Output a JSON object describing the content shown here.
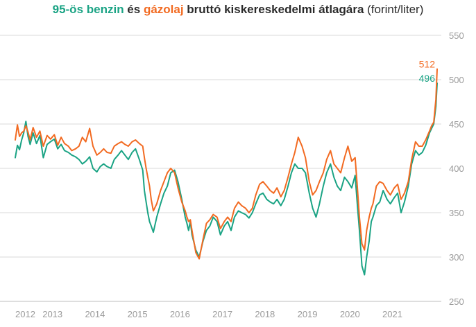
{
  "title": {
    "benzin": "95-ös benzin",
    "es": " és ",
    "gazolaj": "gázolaj",
    "rest": " bruttó kiskereskedelmi átlagára",
    "unit": " (forint/liter)"
  },
  "chart_data": {
    "type": "line",
    "title": "95-ös benzin és gázolaj bruttó kiskereskedelmi átlagára (forint/liter)",
    "xlabel": "",
    "ylabel": "",
    "ylim": [
      250,
      550
    ],
    "xlim": [
      2012.0,
      2021.93
    ],
    "x_ticks": [
      "2012",
      "2013",
      "2014",
      "2015",
      "2016",
      "2017",
      "2018",
      "2019",
      "2020",
      "2021"
    ],
    "y_ticks": [
      250,
      300,
      350,
      400,
      450,
      500,
      550
    ],
    "grid": "horizontal",
    "legend": "none (series named in title)",
    "colors": {
      "benzin": "#1aa384",
      "gazolaj": "#f26a21",
      "grid": "#d9d9d9",
      "tick": "#9a9a9a"
    },
    "series": [
      {
        "name": "95-ös benzin",
        "color": "#1aa384",
        "end_label": "496",
        "x": [
          2012.0,
          2012.05,
          2012.1,
          2012.15,
          2012.2,
          2012.25,
          2012.3,
          2012.35,
          2012.42,
          2012.5,
          2012.58,
          2012.66,
          2012.75,
          2012.83,
          2012.92,
          2013.0,
          2013.08,
          2013.16,
          2013.25,
          2013.33,
          2013.42,
          2013.5,
          2013.58,
          2013.66,
          2013.75,
          2013.83,
          2013.92,
          2014.0,
          2014.08,
          2014.16,
          2014.25,
          2014.33,
          2014.42,
          2014.5,
          2014.58,
          2014.66,
          2014.75,
          2014.83,
          2014.92,
          2015.0,
          2015.04,
          2015.08,
          2015.12,
          2015.16,
          2015.2,
          2015.25,
          2015.33,
          2015.42,
          2015.5,
          2015.58,
          2015.66,
          2015.75,
          2015.83,
          2015.92,
          2016.0,
          2016.04,
          2016.08,
          2016.12,
          2016.16,
          2016.25,
          2016.33,
          2016.42,
          2016.5,
          2016.58,
          2016.66,
          2016.75,
          2016.83,
          2016.92,
          2017.0,
          2017.08,
          2017.16,
          2017.25,
          2017.33,
          2017.42,
          2017.5,
          2017.58,
          2017.66,
          2017.75,
          2017.83,
          2017.92,
          2018.0,
          2018.08,
          2018.16,
          2018.25,
          2018.33,
          2018.42,
          2018.5,
          2018.58,
          2018.66,
          2018.75,
          2018.83,
          2018.92,
          2019.0,
          2019.08,
          2019.16,
          2019.25,
          2019.33,
          2019.42,
          2019.5,
          2019.58,
          2019.66,
          2019.75,
          2019.83,
          2019.92,
          2020.0,
          2020.05,
          2020.1,
          2020.16,
          2020.22,
          2020.27,
          2020.33,
          2020.38,
          2020.42,
          2020.5,
          2020.58,
          2020.66,
          2020.75,
          2020.83,
          2020.92,
          2021.0,
          2021.08,
          2021.16,
          2021.25,
          2021.33,
          2021.42,
          2021.5,
          2021.58,
          2021.66,
          2021.75,
          2021.8,
          2021.85,
          2021.9,
          2021.93
        ],
        "y": [
          412,
          426,
          421,
          432,
          440,
          453,
          436,
          427,
          440,
          428,
          437,
          412,
          427,
          430,
          433,
          422,
          427,
          420,
          418,
          415,
          413,
          410,
          405,
          408,
          413,
          400,
          396,
          402,
          405,
          402,
          400,
          410,
          415,
          420,
          415,
          410,
          418,
          422,
          410,
          398,
          375,
          362,
          350,
          340,
          335,
          328,
          345,
          360,
          372,
          380,
          395,
          398,
          385,
          365,
          345,
          338,
          330,
          340,
          325,
          308,
          300,
          318,
          330,
          335,
          345,
          340,
          325,
          335,
          340,
          330,
          345,
          352,
          350,
          348,
          344,
          350,
          360,
          370,
          372,
          365,
          362,
          360,
          365,
          358,
          365,
          380,
          395,
          405,
          400,
          400,
          395,
          372,
          355,
          345,
          360,
          380,
          395,
          405,
          390,
          380,
          375,
          390,
          385,
          378,
          392,
          360,
          330,
          290,
          280,
          300,
          318,
          340,
          345,
          358,
          362,
          375,
          365,
          360,
          367,
          372,
          350,
          362,
          380,
          405,
          420,
          415,
          418,
          426,
          440,
          445,
          450,
          470,
          496
        ]
      },
      {
        "name": "gázolaj",
        "color": "#f26a21",
        "end_label": "512",
        "x": [
          2012.0,
          2012.05,
          2012.1,
          2012.15,
          2012.2,
          2012.25,
          2012.3,
          2012.35,
          2012.42,
          2012.5,
          2012.58,
          2012.66,
          2012.75,
          2012.83,
          2012.92,
          2013.0,
          2013.08,
          2013.16,
          2013.25,
          2013.33,
          2013.42,
          2013.5,
          2013.58,
          2013.66,
          2013.75,
          2013.83,
          2013.92,
          2014.0,
          2014.08,
          2014.16,
          2014.25,
          2014.33,
          2014.42,
          2014.5,
          2014.58,
          2014.66,
          2014.75,
          2014.83,
          2014.92,
          2015.0,
          2015.04,
          2015.08,
          2015.12,
          2015.16,
          2015.2,
          2015.25,
          2015.33,
          2015.42,
          2015.5,
          2015.58,
          2015.66,
          2015.75,
          2015.83,
          2015.92,
          2016.0,
          2016.04,
          2016.08,
          2016.12,
          2016.16,
          2016.25,
          2016.33,
          2016.42,
          2016.5,
          2016.58,
          2016.66,
          2016.75,
          2016.83,
          2016.92,
          2017.0,
          2017.08,
          2017.16,
          2017.25,
          2017.33,
          2017.42,
          2017.5,
          2017.58,
          2017.66,
          2017.75,
          2017.83,
          2017.92,
          2018.0,
          2018.08,
          2018.16,
          2018.25,
          2018.33,
          2018.42,
          2018.5,
          2018.58,
          2018.66,
          2018.75,
          2018.83,
          2018.92,
          2019.0,
          2019.08,
          2019.16,
          2019.25,
          2019.33,
          2019.42,
          2019.5,
          2019.58,
          2019.66,
          2019.75,
          2019.83,
          2019.92,
          2020.0,
          2020.05,
          2020.1,
          2020.16,
          2020.22,
          2020.27,
          2020.33,
          2020.38,
          2020.42,
          2020.5,
          2020.58,
          2020.66,
          2020.75,
          2020.83,
          2020.92,
          2021.0,
          2021.08,
          2021.16,
          2021.25,
          2021.33,
          2021.42,
          2021.5,
          2021.58,
          2021.66,
          2021.75,
          2021.8,
          2021.85,
          2021.9,
          2021.93
        ],
        "y": [
          432,
          449,
          436,
          440,
          442,
          448,
          441,
          432,
          446,
          435,
          442,
          425,
          437,
          433,
          438,
          426,
          435,
          428,
          425,
          420,
          422,
          425,
          435,
          430,
          445,
          425,
          415,
          418,
          422,
          418,
          417,
          425,
          428,
          430,
          427,
          425,
          430,
          432,
          428,
          425,
          412,
          400,
          390,
          380,
          365,
          352,
          360,
          375,
          385,
          395,
          400,
          395,
          378,
          362,
          352,
          345,
          340,
          342,
          330,
          305,
          298,
          320,
          338,
          342,
          348,
          345,
          332,
          340,
          345,
          340,
          355,
          362,
          358,
          355,
          350,
          355,
          370,
          382,
          385,
          380,
          375,
          372,
          378,
          368,
          375,
          390,
          405,
          418,
          435,
          425,
          412,
          385,
          370,
          375,
          385,
          395,
          410,
          420,
          405,
          400,
          395,
          412,
          425,
          408,
          412,
          380,
          345,
          315,
          308,
          330,
          345,
          355,
          360,
          380,
          385,
          383,
          375,
          370,
          378,
          382,
          365,
          372,
          385,
          410,
          430,
          425,
          425,
          432,
          442,
          448,
          452,
          478,
          512
        ]
      }
    ]
  }
}
